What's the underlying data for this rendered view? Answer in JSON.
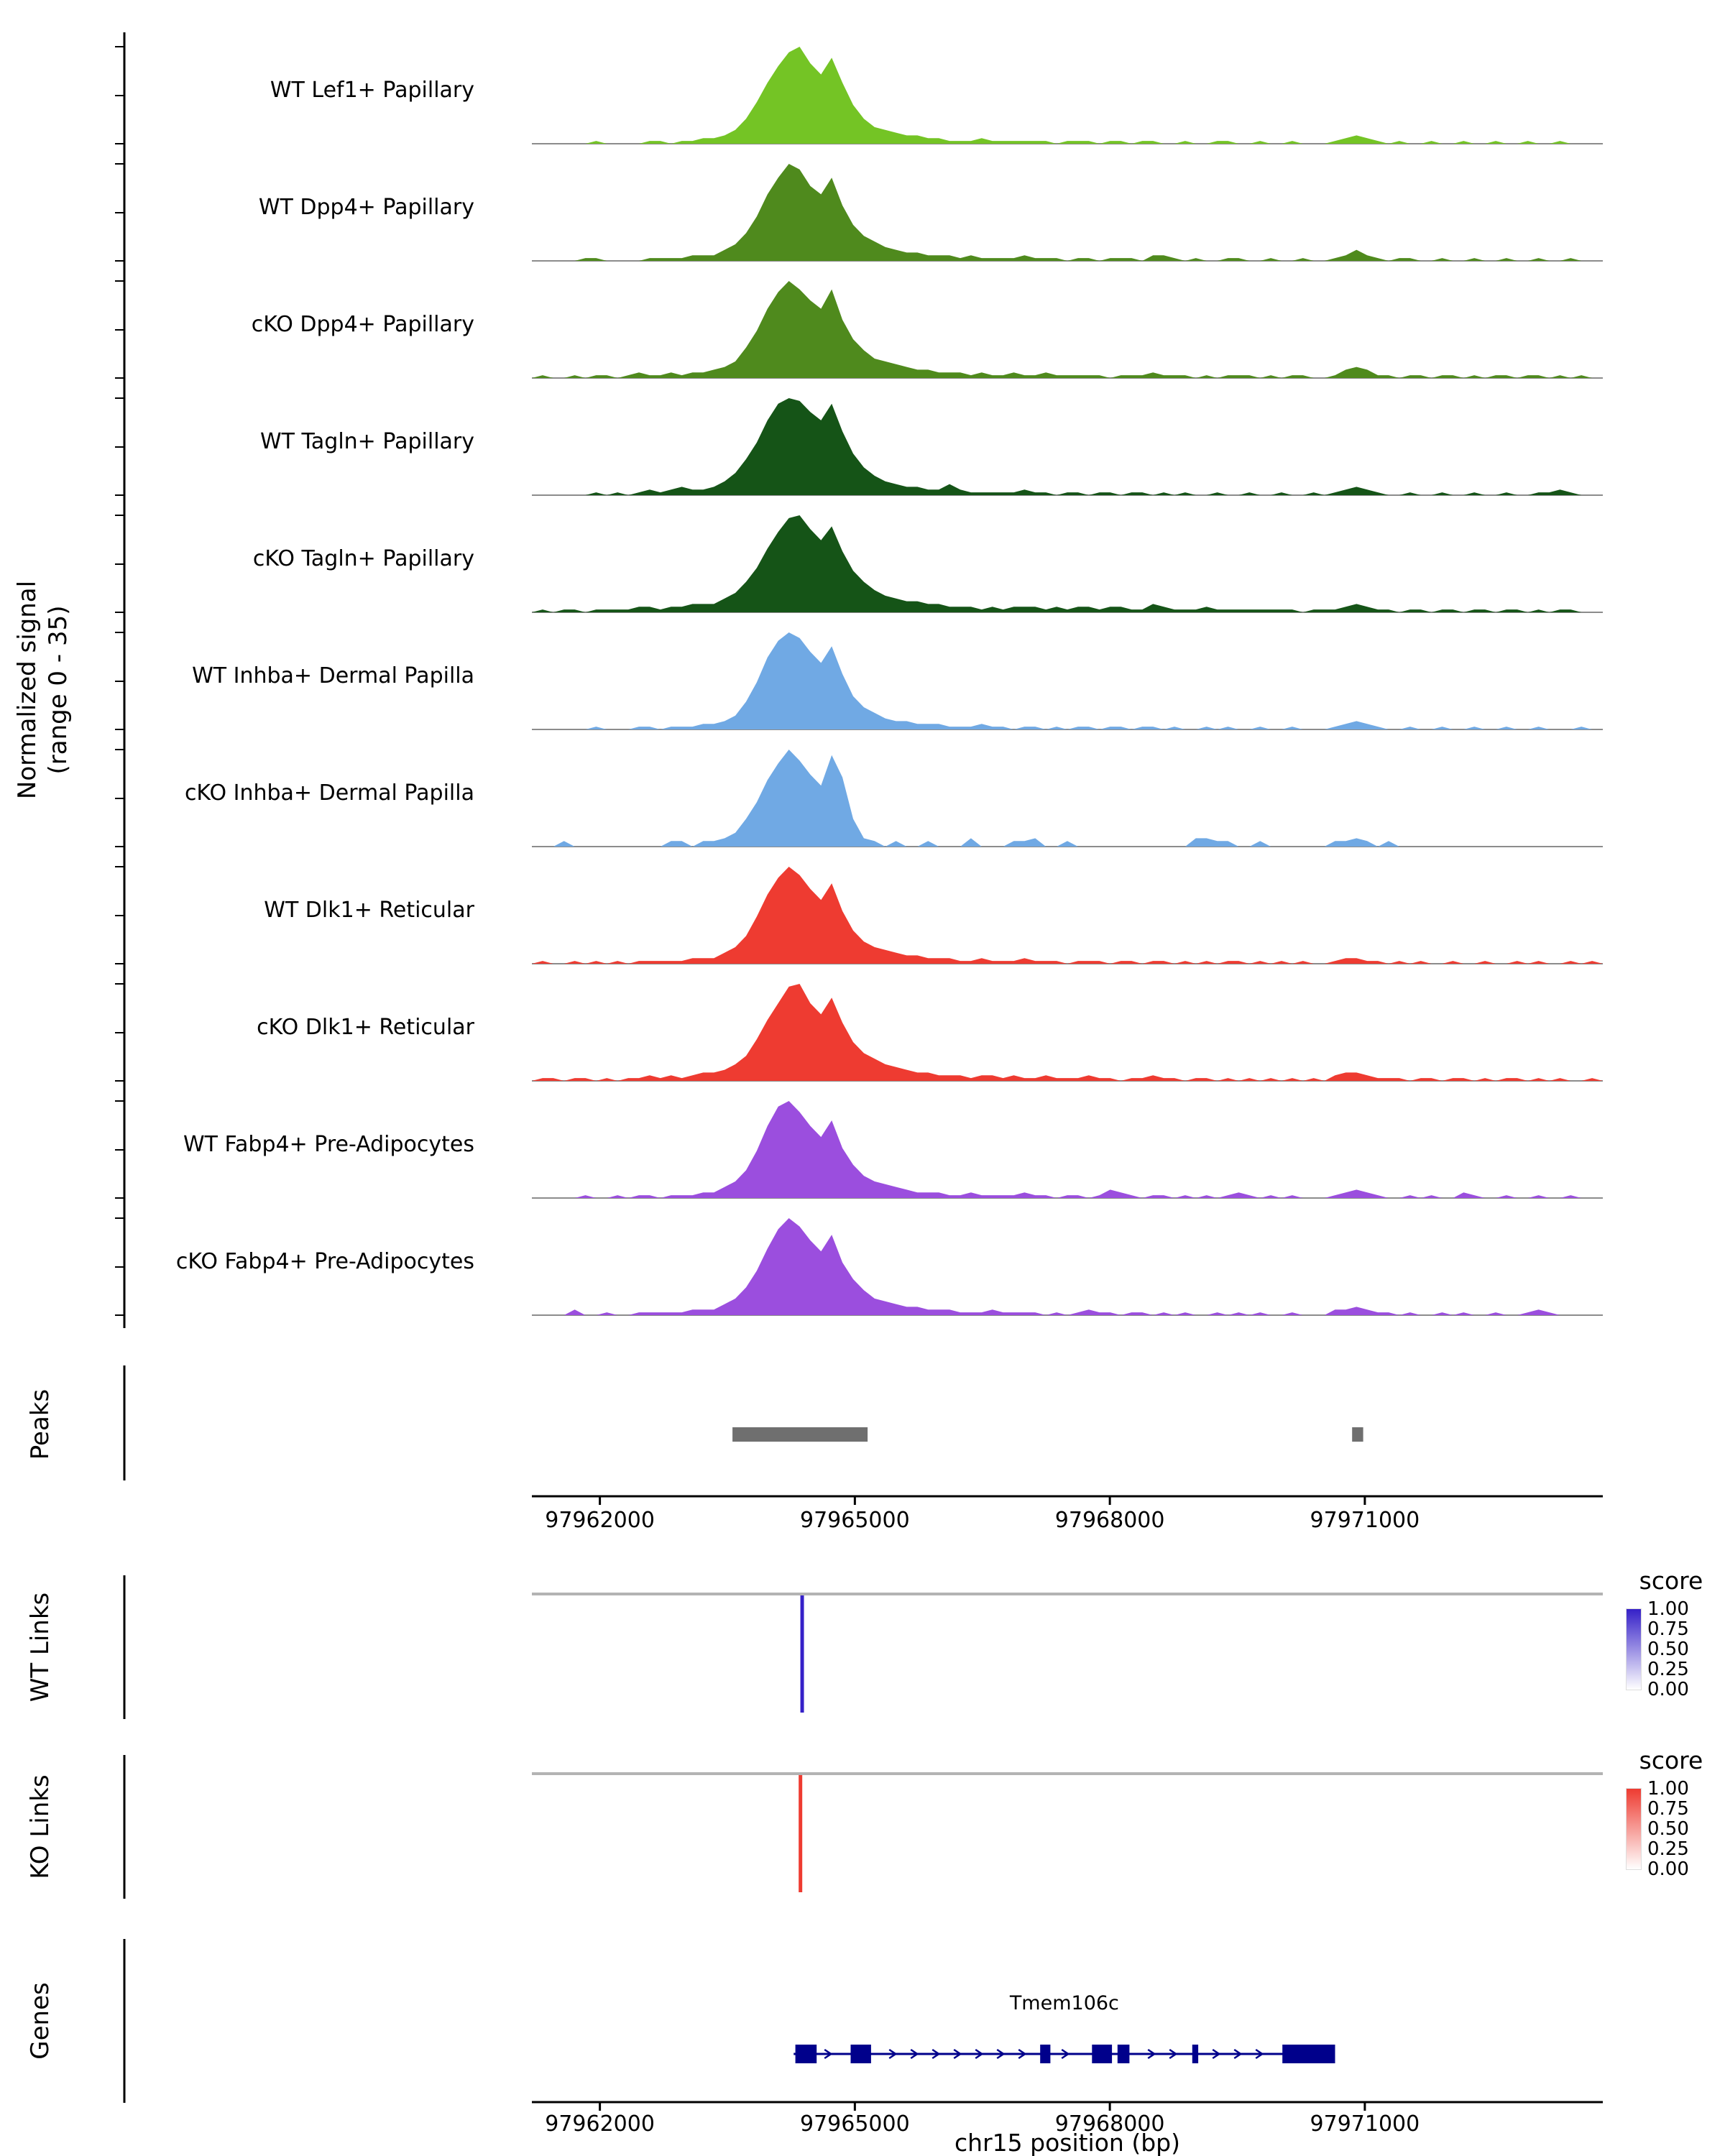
{
  "chart_data": {
    "type": "area",
    "region": {
      "chrom": "chr15",
      "start": 97961200,
      "end": 97973800
    },
    "y_axis": {
      "label_line1": "Normalized signal",
      "label_line2": "(range 0 - 35)",
      "range": [
        0,
        35
      ]
    },
    "x_axis": {
      "title": "chr15 position (bp)",
      "tick_positions": [
        97962000,
        97965000,
        97968000,
        97971000
      ],
      "tick_labels": [
        "97962000",
        "97965000",
        "97968000",
        "97971000"
      ]
    },
    "panels": {
      "peaks_label": "Peaks",
      "wt_links_label": "WT Links",
      "ko_links_label": "KO Links",
      "genes_label": "Genes"
    },
    "tracks": [
      {
        "name": "WT Lef1+ Papillary",
        "color": "#74C425",
        "values": [
          0,
          0,
          0,
          0,
          0,
          0,
          1,
          0,
          0,
          0,
          0,
          1,
          1,
          0,
          1,
          1,
          2,
          2,
          3,
          5,
          9,
          15,
          22,
          28,
          33,
          35,
          29,
          25,
          31,
          22,
          14,
          9,
          6,
          5,
          4,
          3,
          3,
          2,
          2,
          1,
          1,
          1,
          2,
          1,
          1,
          1,
          1,
          1,
          1,
          0,
          1,
          1,
          1,
          0,
          1,
          1,
          0,
          1,
          1,
          0,
          0,
          1,
          0,
          0,
          1,
          1,
          0,
          0,
          1,
          0,
          0,
          1,
          0,
          0,
          0,
          1,
          2,
          3,
          2,
          1,
          0,
          1,
          0,
          0,
          1,
          0,
          0,
          1,
          0,
          0,
          1,
          0,
          0,
          1,
          0,
          0,
          1,
          0,
          0,
          0,
          0
        ]
      },
      {
        "name": "WT Dpp4+ Papillary",
        "color": "#4F8A1D",
        "values": [
          0,
          0,
          0,
          0,
          0,
          1,
          1,
          0,
          0,
          0,
          0,
          1,
          1,
          1,
          1,
          2,
          2,
          2,
          4,
          6,
          10,
          16,
          24,
          30,
          35,
          33,
          27,
          24,
          30,
          20,
          13,
          9,
          7,
          5,
          4,
          3,
          3,
          2,
          2,
          2,
          1,
          2,
          1,
          1,
          1,
          1,
          2,
          1,
          1,
          1,
          0,
          1,
          1,
          0,
          1,
          1,
          1,
          0,
          2,
          2,
          1,
          0,
          1,
          0,
          0,
          1,
          1,
          0,
          0,
          1,
          0,
          0,
          1,
          0,
          0,
          1,
          2,
          4,
          2,
          1,
          0,
          1,
          1,
          0,
          0,
          1,
          0,
          0,
          1,
          0,
          0,
          1,
          0,
          0,
          1,
          0,
          0,
          1,
          0,
          0,
          0
        ]
      },
      {
        "name": "cKO Dpp4+ Papillary",
        "color": "#4F8A1D",
        "values": [
          0,
          1,
          0,
          0,
          1,
          0,
          1,
          1,
          0,
          1,
          2,
          1,
          1,
          2,
          1,
          2,
          2,
          3,
          4,
          6,
          11,
          17,
          25,
          31,
          35,
          32,
          28,
          25,
          32,
          21,
          14,
          10,
          7,
          6,
          5,
          4,
          3,
          3,
          2,
          2,
          2,
          1,
          2,
          1,
          1,
          2,
          1,
          1,
          2,
          1,
          1,
          1,
          1,
          1,
          0,
          1,
          1,
          1,
          2,
          1,
          1,
          1,
          0,
          1,
          0,
          1,
          1,
          1,
          0,
          1,
          0,
          1,
          1,
          0,
          0,
          1,
          3,
          4,
          3,
          1,
          1,
          0,
          1,
          1,
          0,
          1,
          1,
          0,
          1,
          0,
          1,
          1,
          0,
          1,
          1,
          0,
          1,
          0,
          1,
          0,
          0
        ]
      },
      {
        "name": "WT Tagln+ Papillary",
        "color": "#155417",
        "values": [
          0,
          0,
          0,
          0,
          0,
          0,
          1,
          0,
          1,
          0,
          1,
          2,
          1,
          2,
          3,
          2,
          2,
          3,
          5,
          8,
          13,
          19,
          27,
          33,
          35,
          34,
          30,
          27,
          33,
          23,
          15,
          10,
          7,
          5,
          4,
          3,
          3,
          2,
          2,
          4,
          2,
          1,
          1,
          1,
          1,
          1,
          2,
          1,
          1,
          0,
          1,
          1,
          0,
          1,
          1,
          0,
          1,
          1,
          0,
          1,
          0,
          1,
          0,
          0,
          1,
          0,
          0,
          1,
          0,
          0,
          1,
          0,
          0,
          1,
          0,
          1,
          2,
          3,
          2,
          1,
          0,
          0,
          1,
          0,
          0,
          1,
          0,
          0,
          1,
          0,
          0,
          1,
          0,
          0,
          1,
          1,
          2,
          1,
          0,
          0,
          0
        ]
      },
      {
        "name": "cKO Tagln+ Papillary",
        "color": "#155417",
        "values": [
          0,
          1,
          0,
          1,
          1,
          0,
          1,
          1,
          1,
          1,
          2,
          2,
          1,
          2,
          2,
          3,
          3,
          3,
          5,
          7,
          11,
          16,
          23,
          29,
          34,
          35,
          30,
          26,
          31,
          22,
          15,
          11,
          8,
          6,
          5,
          4,
          4,
          3,
          3,
          2,
          2,
          2,
          1,
          2,
          1,
          2,
          2,
          2,
          1,
          2,
          1,
          2,
          2,
          1,
          2,
          2,
          1,
          1,
          3,
          2,
          1,
          1,
          1,
          2,
          1,
          1,
          1,
          1,
          1,
          1,
          1,
          1,
          0,
          1,
          1,
          1,
          2,
          3,
          2,
          1,
          1,
          0,
          1,
          1,
          0,
          1,
          1,
          0,
          1,
          1,
          0,
          1,
          1,
          0,
          1,
          0,
          1,
          1,
          0,
          0,
          0
        ]
      },
      {
        "name": "WT Inhba+ Dermal Papilla",
        "color": "#70A9E4",
        "values": [
          0,
          0,
          0,
          0,
          0,
          0,
          1,
          0,
          0,
          0,
          1,
          1,
          0,
          1,
          1,
          1,
          2,
          2,
          3,
          5,
          10,
          17,
          26,
          32,
          35,
          33,
          28,
          24,
          30,
          20,
          12,
          8,
          6,
          4,
          3,
          3,
          2,
          2,
          2,
          1,
          1,
          1,
          2,
          1,
          1,
          0,
          1,
          1,
          0,
          1,
          0,
          1,
          1,
          0,
          1,
          1,
          0,
          1,
          1,
          0,
          1,
          0,
          0,
          1,
          0,
          1,
          0,
          0,
          1,
          0,
          0,
          1,
          0,
          0,
          0,
          1,
          2,
          3,
          2,
          1,
          0,
          0,
          1,
          0,
          0,
          1,
          0,
          0,
          1,
          0,
          0,
          1,
          0,
          0,
          1,
          0,
          0,
          0,
          1,
          0,
          0
        ]
      },
      {
        "name": "cKO Inhba+ Dermal Papilla",
        "color": "#70A9E4",
        "values": [
          0,
          0,
          0,
          2,
          0,
          0,
          0,
          0,
          0,
          0,
          0,
          0,
          0,
          2,
          2,
          0,
          2,
          2,
          3,
          5,
          10,
          16,
          24,
          30,
          35,
          31,
          26,
          22,
          33,
          25,
          10,
          3,
          2,
          0,
          2,
          0,
          0,
          2,
          0,
          0,
          0,
          3,
          0,
          0,
          0,
          2,
          2,
          3,
          0,
          0,
          2,
          0,
          0,
          0,
          0,
          0,
          0,
          0,
          0,
          0,
          0,
          0,
          3,
          3,
          2,
          2,
          0,
          0,
          2,
          0,
          0,
          0,
          0,
          0,
          0,
          2,
          2,
          3,
          2,
          0,
          2,
          0,
          0,
          0,
          0,
          0,
          0,
          0,
          0,
          0,
          0,
          0,
          0,
          0,
          0,
          0,
          0,
          0,
          0,
          0,
          0
        ]
      },
      {
        "name": "WT Dlk1+ Reticular",
        "color": "#EE3B31",
        "values": [
          0,
          1,
          0,
          0,
          1,
          0,
          1,
          0,
          1,
          0,
          1,
          1,
          1,
          1,
          1,
          2,
          2,
          2,
          4,
          6,
          10,
          17,
          25,
          31,
          35,
          32,
          27,
          23,
          29,
          19,
          12,
          8,
          6,
          5,
          4,
          3,
          3,
          2,
          2,
          2,
          1,
          1,
          2,
          1,
          1,
          1,
          2,
          1,
          1,
          1,
          0,
          1,
          1,
          1,
          0,
          1,
          1,
          0,
          1,
          1,
          0,
          1,
          0,
          1,
          0,
          1,
          1,
          0,
          1,
          0,
          1,
          0,
          1,
          0,
          0,
          1,
          2,
          2,
          1,
          1,
          0,
          1,
          0,
          1,
          0,
          0,
          1,
          0,
          0,
          1,
          0,
          0,
          1,
          0,
          1,
          0,
          0,
          1,
          0,
          1,
          0
        ]
      },
      {
        "name": "cKO Dlk1+ Reticular",
        "color": "#EE3B31",
        "values": [
          0,
          1,
          1,
          0,
          1,
          1,
          0,
          1,
          0,
          1,
          1,
          2,
          1,
          2,
          1,
          2,
          3,
          3,
          4,
          6,
          9,
          15,
          22,
          28,
          34,
          35,
          28,
          24,
          30,
          21,
          14,
          10,
          8,
          6,
          5,
          4,
          3,
          3,
          2,
          2,
          2,
          1,
          2,
          2,
          1,
          2,
          1,
          1,
          2,
          1,
          1,
          1,
          2,
          1,
          1,
          0,
          1,
          1,
          2,
          1,
          1,
          0,
          1,
          1,
          0,
          1,
          0,
          1,
          0,
          1,
          0,
          1,
          0,
          1,
          0,
          2,
          3,
          3,
          2,
          1,
          1,
          1,
          0,
          1,
          1,
          0,
          1,
          1,
          0,
          1,
          0,
          1,
          1,
          0,
          1,
          0,
          1,
          0,
          0,
          1,
          0
        ]
      },
      {
        "name": "WT Fabp4+ Pre-Adipocytes",
        "color": "#9B4EDE",
        "values": [
          0,
          0,
          0,
          0,
          0,
          1,
          0,
          0,
          1,
          0,
          1,
          1,
          0,
          1,
          1,
          1,
          2,
          2,
          4,
          6,
          10,
          17,
          26,
          33,
          35,
          31,
          26,
          22,
          28,
          18,
          12,
          8,
          6,
          5,
          4,
          3,
          2,
          2,
          2,
          1,
          1,
          2,
          1,
          1,
          1,
          1,
          2,
          1,
          1,
          0,
          1,
          1,
          0,
          1,
          3,
          2,
          1,
          0,
          1,
          1,
          0,
          1,
          0,
          1,
          0,
          1,
          2,
          1,
          0,
          1,
          0,
          1,
          0,
          0,
          0,
          1,
          2,
          3,
          2,
          1,
          0,
          0,
          1,
          0,
          1,
          0,
          0,
          2,
          1,
          0,
          0,
          1,
          0,
          0,
          1,
          0,
          0,
          1,
          0,
          0,
          0
        ]
      },
      {
        "name": "cKO Fabp4+ Pre-Adipocytes",
        "color": "#9B4EDE",
        "values": [
          0,
          0,
          0,
          0,
          2,
          0,
          0,
          1,
          0,
          0,
          1,
          1,
          1,
          1,
          1,
          2,
          2,
          2,
          4,
          6,
          10,
          16,
          24,
          31,
          35,
          32,
          27,
          23,
          29,
          19,
          13,
          9,
          6,
          5,
          4,
          3,
          3,
          2,
          2,
          2,
          1,
          1,
          1,
          2,
          1,
          1,
          1,
          1,
          0,
          1,
          0,
          1,
          2,
          1,
          1,
          0,
          1,
          1,
          0,
          1,
          0,
          1,
          0,
          0,
          1,
          0,
          1,
          0,
          1,
          0,
          0,
          1,
          0,
          0,
          0,
          2,
          2,
          3,
          2,
          1,
          1,
          0,
          1,
          0,
          0,
          1,
          0,
          1,
          0,
          0,
          1,
          0,
          0,
          1,
          2,
          1,
          0,
          0,
          0,
          0,
          0
        ]
      }
    ],
    "peaks": {
      "color": "#6F6F6F",
      "intervals": [
        {
          "start": 97963560,
          "end": 97965150
        },
        {
          "start": 97970850,
          "end": 97970980
        }
      ]
    },
    "wt_links": {
      "color": "#3520C8",
      "links": [
        {
          "pos": 97964380,
          "score": 1.0
        }
      ]
    },
    "ko_links": {
      "color": "#EE3B31",
      "links": [
        {
          "pos": 97964360,
          "score": 1.0
        }
      ]
    },
    "score_legend": {
      "title": "score",
      "tick_labels": [
        "1.00",
        "0.75",
        "0.50",
        "0.25",
        "0.00"
      ],
      "wt_high": "#3520C8",
      "ko_high": "#EE3B31"
    },
    "genes": {
      "items": [
        {
          "name": "Tmem106c",
          "strand": "+",
          "color": "#00008B",
          "start": 97964280,
          "end": 97970650,
          "exons": [
            [
              97964300,
              97964550
            ],
            [
              97964950,
              97965190
            ],
            [
              97967180,
              97967300
            ],
            [
              97967790,
              97968025
            ],
            [
              97968090,
              97968230
            ],
            [
              97968970,
              97969040
            ],
            [
              97970030,
              97970650
            ]
          ]
        }
      ]
    }
  }
}
